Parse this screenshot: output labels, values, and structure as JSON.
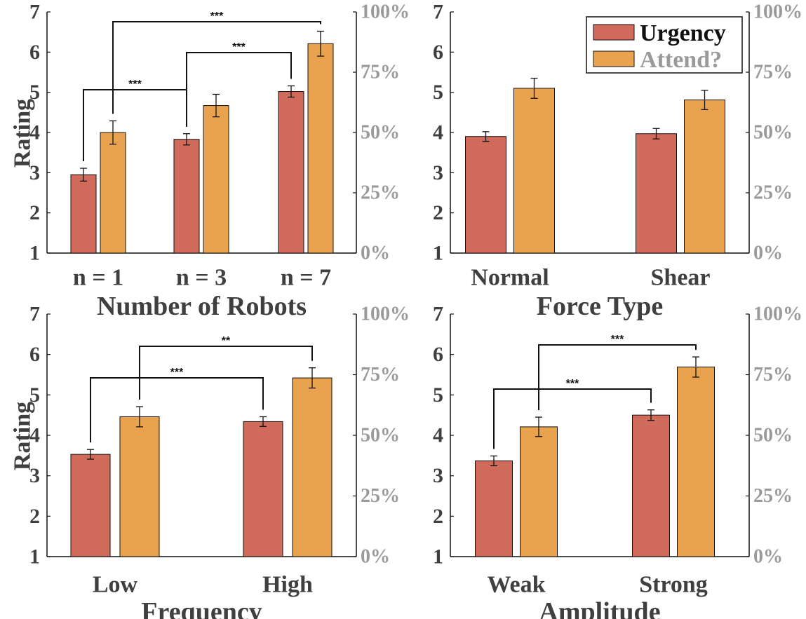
{
  "colors": {
    "urgency": "#d06b5b",
    "attend": "#e9a24e",
    "left_axis": "#3f3f3f",
    "right_axis": "#9a9a9a"
  },
  "legend": {
    "urgency": "Urgency",
    "attend": "Attend?"
  },
  "chart_data": [
    {
      "type": "bar",
      "xlabel": "Number of Robots",
      "ylabel": "Rating",
      "categories": [
        "n = 1",
        "n = 3",
        "n = 7"
      ],
      "ylim": [
        1,
        7
      ],
      "yticks": [
        "1",
        "2",
        "3",
        "4",
        "5",
        "6",
        "7"
      ],
      "y2ticks": [
        "0%",
        "25%",
        "50%",
        "75%",
        "100%"
      ],
      "series": [
        {
          "name": "Urgency",
          "values": [
            2.95,
            3.83,
            5.02
          ],
          "errors": [
            0.16,
            0.14,
            0.14
          ]
        },
        {
          "name": "Attend?",
          "values": [
            4.0,
            4.67,
            6.21
          ],
          "errors": [
            0.29,
            0.28,
            0.31
          ]
        }
      ],
      "significance": [
        {
          "from": [
            0,
            0
          ],
          "to": [
            1,
            0
          ],
          "label": "***"
        },
        {
          "from": [
            1,
            0
          ],
          "to": [
            2,
            0
          ],
          "label": "***"
        },
        {
          "from": [
            0,
            1
          ],
          "to": [
            2,
            1
          ],
          "label": "***"
        }
      ]
    },
    {
      "type": "bar",
      "xlabel": "Force Type",
      "ylabel": "",
      "categories": [
        "Normal",
        "Shear"
      ],
      "ylim": [
        1,
        7
      ],
      "yticks": [
        "1",
        "2",
        "3",
        "4",
        "5",
        "6",
        "7"
      ],
      "y2ticks": [
        "0%",
        "25%",
        "50%",
        "75%",
        "100%"
      ],
      "series": [
        {
          "name": "Urgency",
          "values": [
            3.9,
            3.97
          ],
          "errors": [
            0.12,
            0.13
          ]
        },
        {
          "name": "Attend?",
          "values": [
            5.1,
            4.81
          ],
          "errors": [
            0.25,
            0.24
          ]
        }
      ],
      "significance": [],
      "legend_position": "top-right"
    },
    {
      "type": "bar",
      "xlabel": "Frequency",
      "ylabel": "Rating",
      "categories": [
        "Low",
        "High"
      ],
      "ylim": [
        1,
        7
      ],
      "yticks": [
        "1",
        "2",
        "3",
        "4",
        "5",
        "6",
        "7"
      ],
      "y2ticks": [
        "0%",
        "25%",
        "50%",
        "75%",
        "100%"
      ],
      "series": [
        {
          "name": "Urgency",
          "values": [
            3.53,
            4.34
          ],
          "errors": [
            0.12,
            0.12
          ]
        },
        {
          "name": "Attend?",
          "values": [
            4.46,
            5.42
          ],
          "errors": [
            0.25,
            0.25
          ]
        }
      ],
      "significance": [
        {
          "from": [
            0,
            0
          ],
          "to": [
            1,
            0
          ],
          "label": "***"
        },
        {
          "from": [
            0,
            1
          ],
          "to": [
            1,
            1
          ],
          "label": "**"
        }
      ]
    },
    {
      "type": "bar",
      "xlabel": "Amplitude",
      "ylabel": "",
      "categories": [
        "Weak",
        "Strong"
      ],
      "ylim": [
        1,
        7
      ],
      "yticks": [
        "1",
        "2",
        "3",
        "4",
        "5",
        "6",
        "7"
      ],
      "y2ticks": [
        "0%",
        "25%",
        "50%",
        "75%",
        "100%"
      ],
      "series": [
        {
          "name": "Urgency",
          "values": [
            3.37,
            4.5
          ],
          "errors": [
            0.12,
            0.13
          ]
        },
        {
          "name": "Attend?",
          "values": [
            4.21,
            5.69
          ],
          "errors": [
            0.24,
            0.25
          ]
        }
      ],
      "significance": [
        {
          "from": [
            0,
            0
          ],
          "to": [
            1,
            0
          ],
          "label": "***"
        },
        {
          "from": [
            0,
            1
          ],
          "to": [
            1,
            1
          ],
          "label": "***"
        }
      ]
    }
  ]
}
